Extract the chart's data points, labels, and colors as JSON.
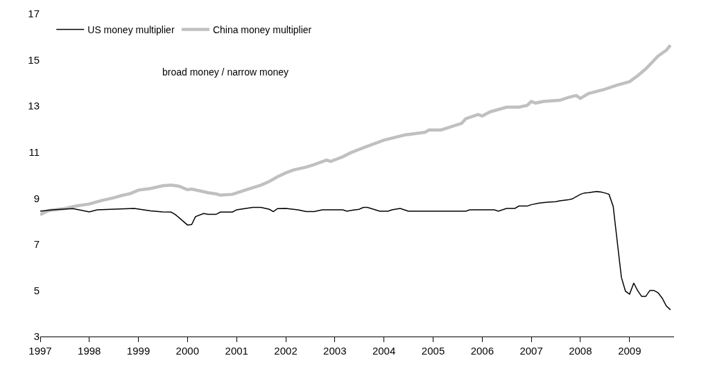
{
  "chart_data": {
    "type": "line",
    "annotations": [
      "broad money / narrow money"
    ],
    "xlim": [
      "1997-01-01",
      "2009-11-28"
    ],
    "xticks": [
      "1997",
      "1998",
      "1999",
      "2000",
      "2001",
      "2002",
      "2003",
      "2004",
      "2005",
      "2006",
      "2007",
      "2008",
      "2009"
    ],
    "ylim": [
      3,
      17
    ],
    "yticks": [
      3,
      5,
      7,
      9,
      11,
      13,
      15,
      17
    ],
    "grid": false,
    "legend": "top left",
    "marker": "none",
    "line_style": "solid",
    "series": [
      {
        "name": "US money multiplier",
        "color": "#000000",
        "x": [
          "1997-01",
          "1997-04",
          "1997-09",
          "1998-01",
          "1998-03",
          "1998-12",
          "1999-04",
          "1999-07",
          "1999-09",
          "1999-10",
          "1999-11",
          "2000-01",
          "2000-02",
          "2000-03",
          "2000-05",
          "2000-06",
          "2000-08",
          "2000-09",
          "2000-12",
          "2001-01",
          "2001-05",
          "2001-07",
          "2001-09",
          "2001-10",
          "2001-11",
          "2002-01",
          "2002-04",
          "2002-06",
          "2002-08",
          "2002-10",
          "2003-01",
          "2003-03",
          "2003-04",
          "2003-06",
          "2003-07",
          "2003-08",
          "2003-09",
          "2003-12",
          "2004-02",
          "2004-03",
          "2004-05",
          "2004-07",
          "2005-09",
          "2005-10",
          "2006-04",
          "2006-05",
          "2006-07",
          "2006-09",
          "2006-10",
          "2006-12",
          "2007-01",
          "2007-03",
          "2007-05",
          "2007-07",
          "2007-08",
          "2007-10",
          "2007-11",
          "2008-01",
          "2008-02",
          "2008-03",
          "2008-05",
          "2008-06",
          "2008-07",
          "2008-08",
          "2008-09",
          "2008-10",
          "2008-11",
          "2008-12",
          "2009-01",
          "2009-02",
          "2009-03",
          "2009-04",
          "2009-05",
          "2009-06",
          "2009-07",
          "2009-08",
          "2009-09",
          "2009-10",
          "2009-11"
        ],
        "values": [
          8.44,
          8.5,
          8.55,
          8.41,
          8.5,
          8.56,
          8.45,
          8.41,
          8.4,
          8.3,
          8.15,
          7.84,
          7.86,
          8.2,
          8.34,
          8.3,
          8.3,
          8.4,
          8.4,
          8.5,
          8.6,
          8.6,
          8.52,
          8.42,
          8.55,
          8.56,
          8.5,
          8.42,
          8.42,
          8.5,
          8.5,
          8.5,
          8.44,
          8.5,
          8.52,
          8.6,
          8.6,
          8.44,
          8.44,
          8.5,
          8.56,
          8.44,
          8.44,
          8.5,
          8.5,
          8.44,
          8.56,
          8.56,
          8.66,
          8.66,
          8.72,
          8.79,
          8.83,
          8.85,
          8.89,
          8.93,
          8.97,
          9.17,
          9.23,
          9.24,
          9.29,
          9.27,
          9.23,
          9.17,
          8.65,
          7.13,
          5.57,
          4.97,
          4.84,
          5.32,
          5.0,
          4.74,
          4.74,
          5.0,
          5.0,
          4.9,
          4.66,
          4.33,
          4.16
        ]
      },
      {
        "name": "China money multiplier",
        "color": "#c0c0c0",
        "x": [
          "1997-01",
          "1997-03",
          "1997-07",
          "1997-10",
          "1998-01",
          "1998-04",
          "1998-07",
          "1998-09",
          "1998-11",
          "1999-01",
          "1999-04",
          "1999-07",
          "1999-09",
          "1999-11",
          "2000-01",
          "2000-02",
          "2000-06",
          "2000-08",
          "2000-09",
          "2000-12",
          "2001-02",
          "2001-04",
          "2001-07",
          "2001-09",
          "2001-11",
          "2002-01",
          "2002-03",
          "2002-06",
          "2002-08",
          "2002-11",
          "2002-12",
          "2003-03",
          "2003-05",
          "2003-08",
          "2004-01",
          "2004-06",
          "2004-11",
          "2004-12",
          "2005-03",
          "2005-08",
          "2005-09",
          "2005-12",
          "2006-01",
          "2006-03",
          "2006-07",
          "2006-10",
          "2006-12",
          "2007-01",
          "2007-02",
          "2007-04",
          "2007-08",
          "2007-10",
          "2007-12",
          "2008-01",
          "2008-03",
          "2008-07",
          "2008-10",
          "2009-01",
          "2009-03",
          "2009-05",
          "2009-08",
          "2009-10",
          "2009-11"
        ],
        "values": [
          8.29,
          8.46,
          8.55,
          8.67,
          8.75,
          8.9,
          9.02,
          9.12,
          9.2,
          9.35,
          9.42,
          9.54,
          9.57,
          9.52,
          9.37,
          9.4,
          9.24,
          9.19,
          9.14,
          9.17,
          9.29,
          9.4,
          9.57,
          9.73,
          9.93,
          10.1,
          10.23,
          10.35,
          10.46,
          10.66,
          10.6,
          10.8,
          10.98,
          11.19,
          11.52,
          11.74,
          11.86,
          11.96,
          11.96,
          12.25,
          12.45,
          12.63,
          12.57,
          12.75,
          12.95,
          12.95,
          13.03,
          13.2,
          13.13,
          13.2,
          13.25,
          13.37,
          13.46,
          13.33,
          13.54,
          13.73,
          13.91,
          14.06,
          14.31,
          14.61,
          15.17,
          15.42,
          15.64
        ]
      }
    ]
  }
}
